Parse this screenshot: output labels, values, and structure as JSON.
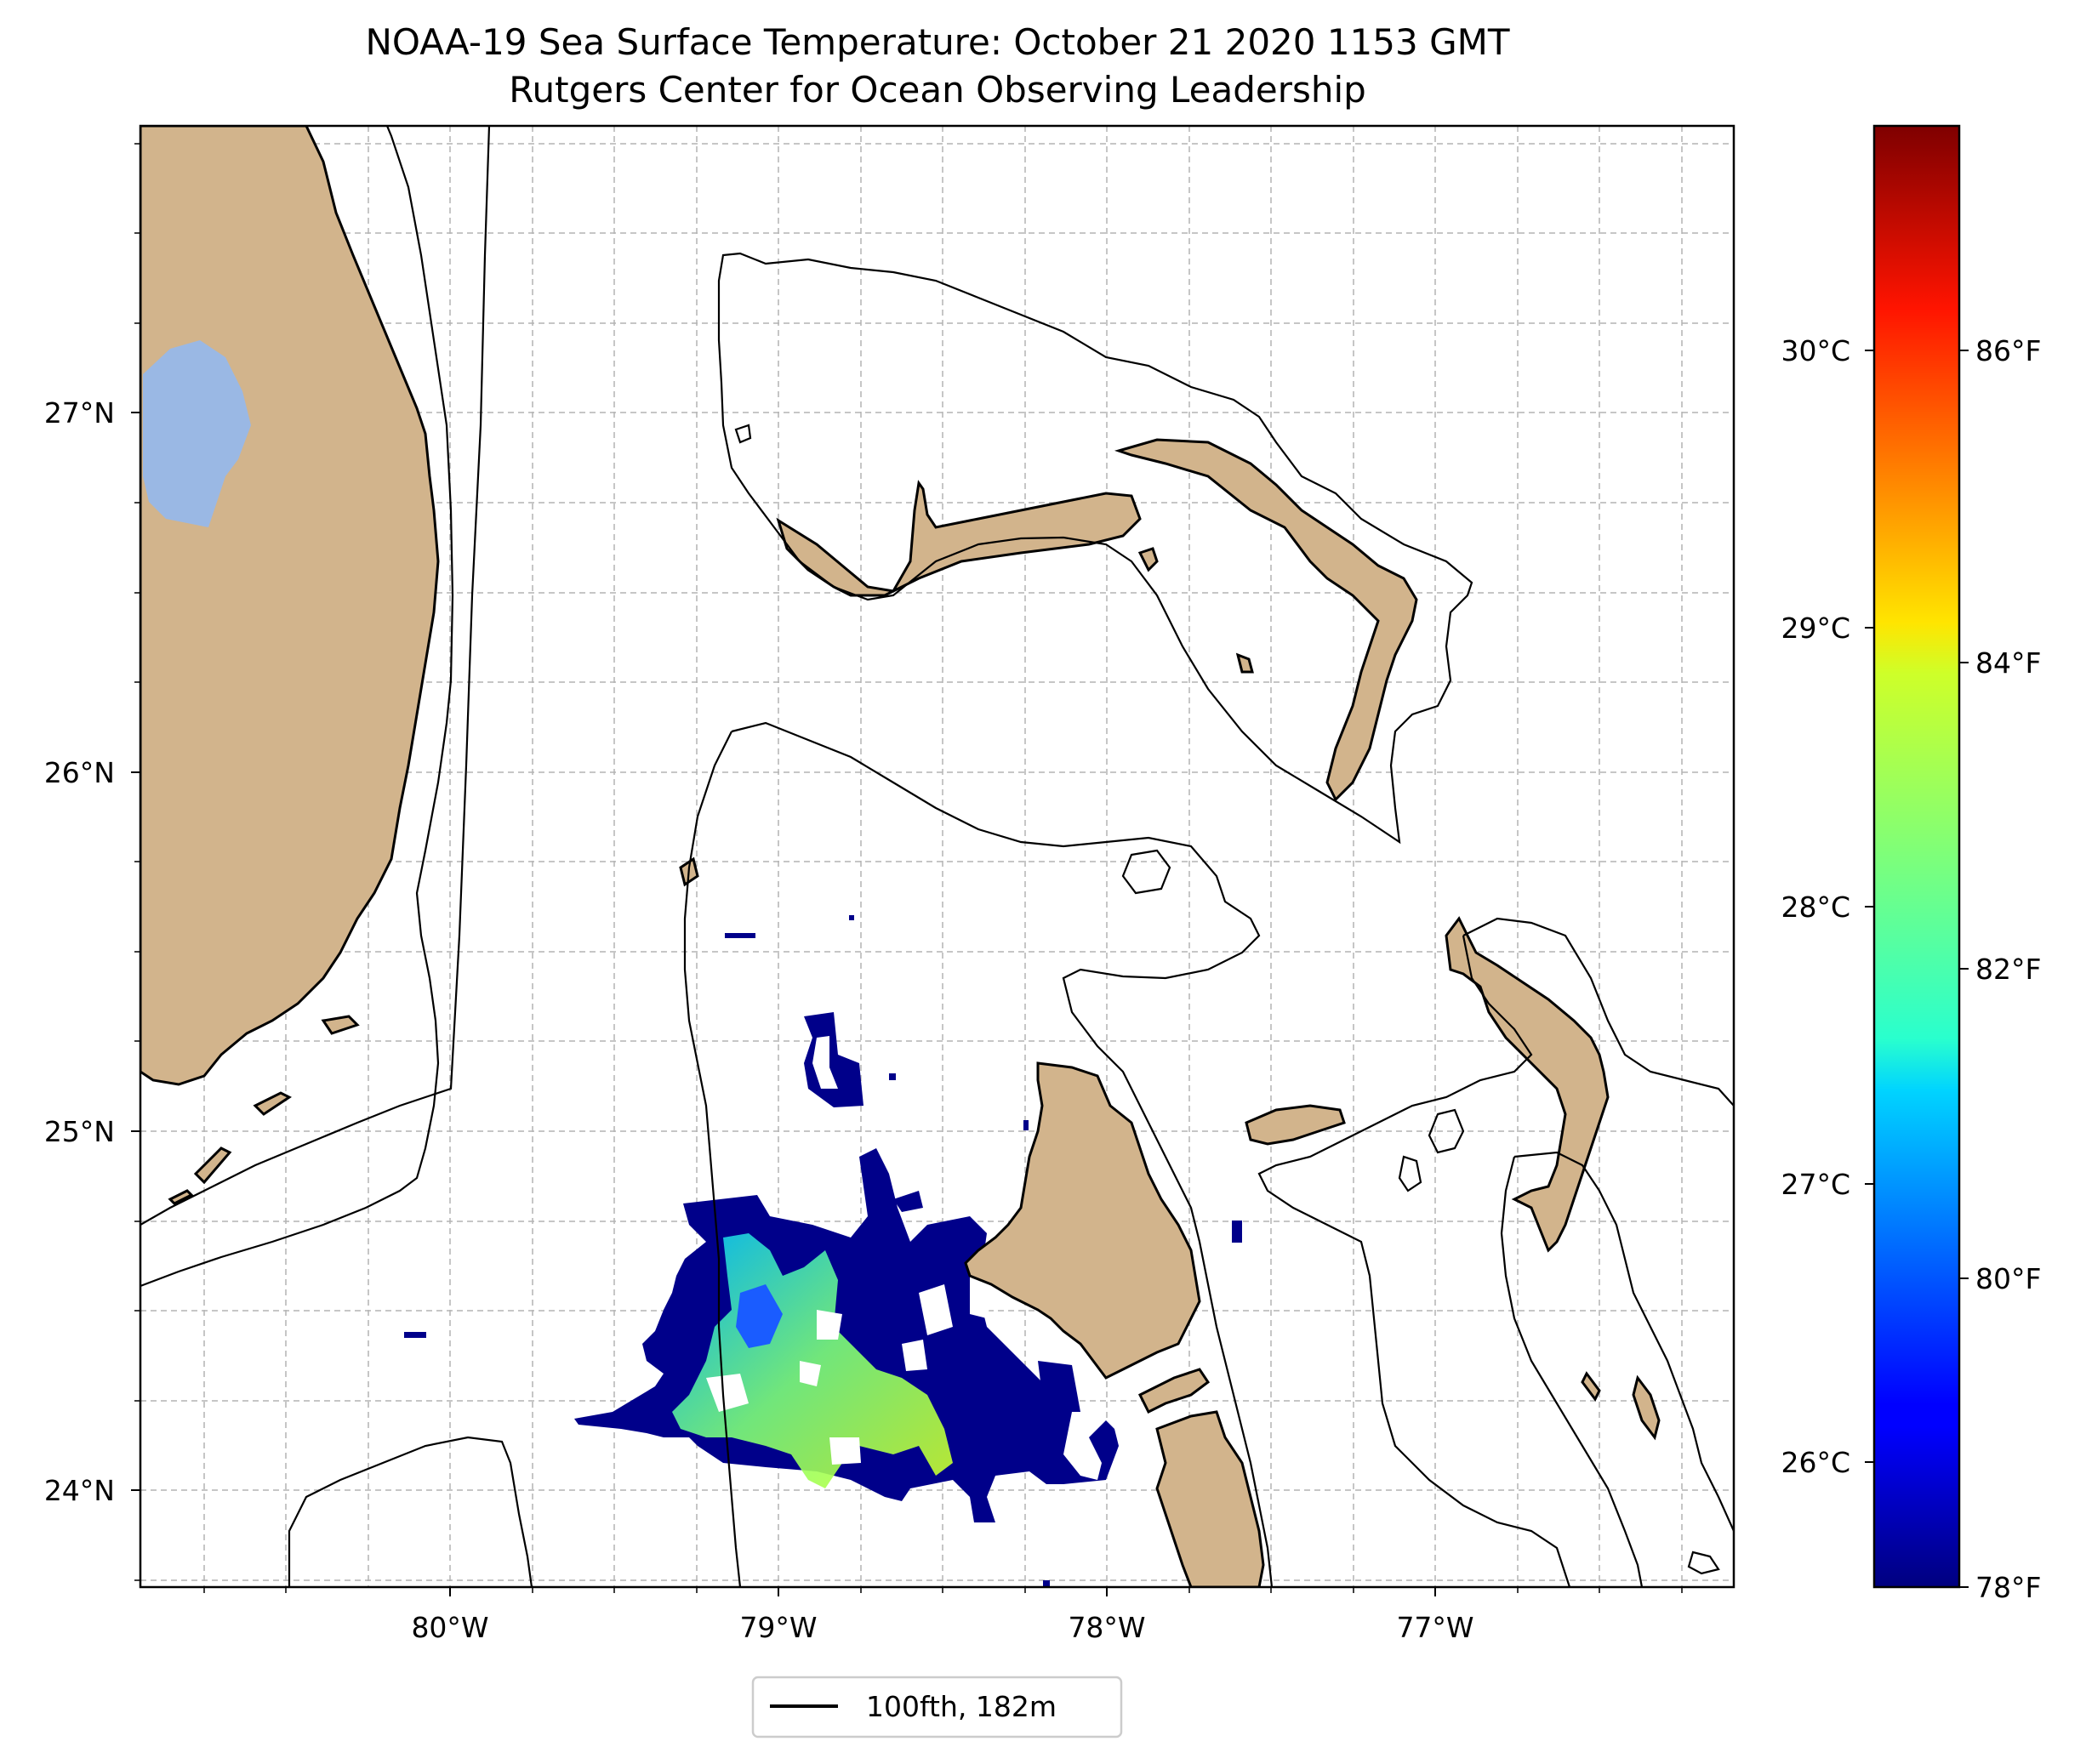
{
  "title": {
    "line1": "NOAA-19 Sea Surface Temperature: October 21 2020 1153 GMT",
    "line2": "Rutgers Center for Ocean Observing Leadership"
  },
  "map": {
    "extent": {
      "lon": [
        -80.95,
        -76.1
      ],
      "lat": [
        23.75,
        27.78
      ]
    },
    "x_ticks": [
      {
        "value": -80,
        "label": "80°W"
      },
      {
        "value": -79,
        "label": "79°W"
      },
      {
        "value": -78,
        "label": "78°W"
      },
      {
        "value": -77,
        "label": "77°W"
      }
    ],
    "y_ticks": [
      {
        "value": 24,
        "label": "24°N"
      },
      {
        "value": 25,
        "label": "25°N"
      },
      {
        "value": 26,
        "label": "26°N"
      },
      {
        "value": 27,
        "label": "27°N"
      }
    ],
    "gridlines": true,
    "colors": {
      "land": "#d2b48c",
      "lake": "#9ab8e4",
      "contour": "#000000",
      "grid": "#b0b0b0"
    }
  },
  "colorbar": {
    "colormap": "jet",
    "celsius_ticks": [
      "30°C",
      "29°C",
      "28°C",
      "27°C",
      "26°C"
    ],
    "fahrenheit_ticks": [
      "86°F",
      "84°F",
      "82°F",
      "80°F",
      "78°F"
    ]
  },
  "legend": {
    "label": "100fth, 182m",
    "position": "bottom-center"
  }
}
